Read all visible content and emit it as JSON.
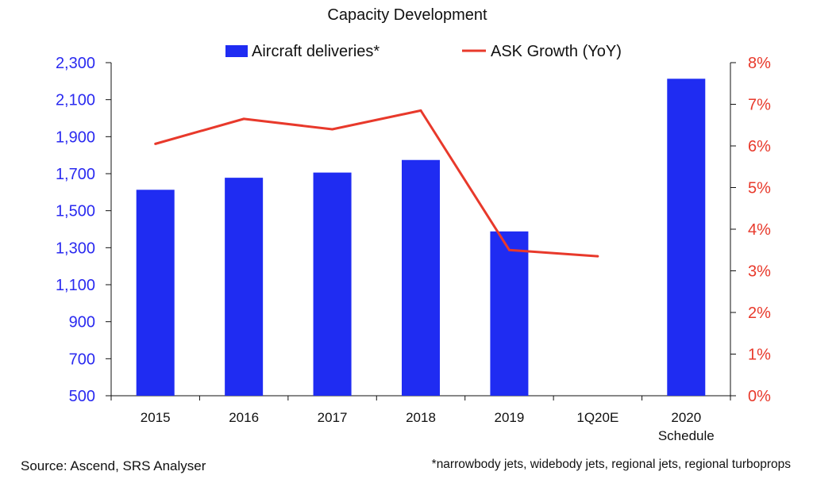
{
  "chart_data": {
    "type": "bar",
    "title": "Capacity Development",
    "categories": [
      "2015",
      "2016",
      "2017",
      "2018",
      "2019",
      "1Q20E",
      "2020"
    ],
    "category_sublabels": [
      "",
      "",
      "",
      "",
      "",
      "",
      "Schedule"
    ],
    "series": [
      {
        "name": "Aircraft deliveries*",
        "type": "bar",
        "axis": "left",
        "color": "#1f2cf2",
        "values": [
          1613,
          1678,
          1706,
          1774,
          1388,
          null,
          2213
        ]
      },
      {
        "name": "ASK Growth (YoY)",
        "type": "line",
        "axis": "right",
        "color": "#e8392b",
        "values": [
          6.05,
          6.65,
          6.4,
          6.85,
          3.5,
          3.35,
          null
        ]
      }
    ],
    "left_axis": {
      "ylim": [
        500,
        2300
      ],
      "ticks": [
        500,
        700,
        900,
        1100,
        1300,
        1500,
        1700,
        1900,
        2100,
        2300
      ],
      "tick_labels": [
        "500",
        "700",
        "900",
        "1,100",
        "1,300",
        "1,500",
        "1,700",
        "1,900",
        "2,100",
        "2,300"
      ],
      "color": "#2a2af0"
    },
    "right_axis": {
      "ylim": [
        0,
        8
      ],
      "ticks": [
        0,
        1,
        2,
        3,
        4,
        5,
        6,
        7,
        8
      ],
      "tick_labels": [
        "0%",
        "1%",
        "2%",
        "3%",
        "4%",
        "5%",
        "6%",
        "7%",
        "8%"
      ],
      "color": "#e8392b"
    },
    "legend_position": "top-center",
    "grid": false
  },
  "footer": {
    "source": "Source: Ascend, SRS Analyser",
    "footnote": "*narrowbody jets, widebody jets, regional jets, regional turboprops"
  }
}
